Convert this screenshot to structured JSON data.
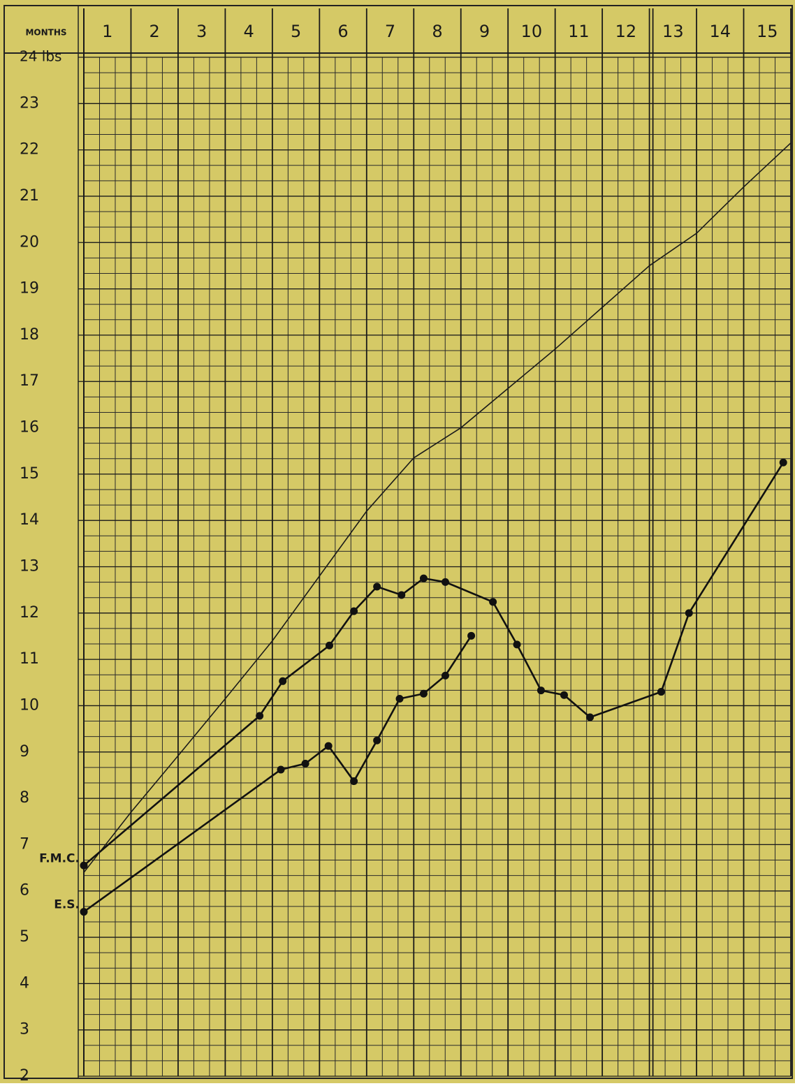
{
  "chart_data": {
    "type": "line",
    "corner_label": "MONTHS",
    "xlim": [
      0,
      15
    ],
    "xticks": [
      1,
      2,
      3,
      4,
      5,
      6,
      7,
      8,
      9,
      10,
      11,
      12,
      13,
      14,
      15
    ],
    "ylim": [
      2,
      24
    ],
    "yticks": [
      2,
      3,
      4,
      5,
      6,
      7,
      8,
      9,
      10,
      11,
      12,
      13,
      14,
      15,
      16,
      17,
      18,
      19,
      20,
      21,
      22,
      23,
      {
        "value": 24,
        "label": "24 lbs"
      }
    ],
    "grid": true,
    "minor_divisions": 3,
    "double_rule_at": 12,
    "background": "#d5c966",
    "series": [
      {
        "color": "#1a1a1a",
        "markers": false,
        "x": [
          0,
          1,
          2,
          3,
          4,
          5,
          6,
          7,
          8,
          9,
          10,
          11,
          12,
          13,
          14,
          15
        ],
        "values": [
          6.4,
          7.7,
          8.92,
          10.15,
          11.4,
          12.8,
          14.2,
          15.35,
          16.0,
          16.85,
          17.7,
          18.6,
          19.5,
          20.2,
          21.2,
          22.15
        ]
      },
      {
        "name": "F.M.C.",
        "color": "#111111",
        "markers": true,
        "x": [
          0,
          3.73,
          4.22,
          5.21,
          5.73,
          6.22,
          6.74,
          7.21,
          7.67,
          8.68,
          9.19,
          9.7,
          10.19,
          10.74,
          12.25,
          12.84,
          14.84
        ],
        "values": [
          6.55,
          9.78,
          10.53,
          11.3,
          12.04,
          12.57,
          12.39,
          12.75,
          12.67,
          12.24,
          11.32,
          10.33,
          10.23,
          9.75,
          10.3,
          12.0,
          15.25
        ]
      },
      {
        "name": "E.S.",
        "color": "#111111",
        "markers": true,
        "x": [
          0,
          4.18,
          4.7,
          5.19,
          5.73,
          6.22,
          6.7,
          7.21,
          7.67,
          8.22
        ],
        "values": [
          5.55,
          8.62,
          8.75,
          9.13,
          8.37,
          9.25,
          10.15,
          10.26,
          10.65,
          11.51
        ]
      }
    ]
  }
}
